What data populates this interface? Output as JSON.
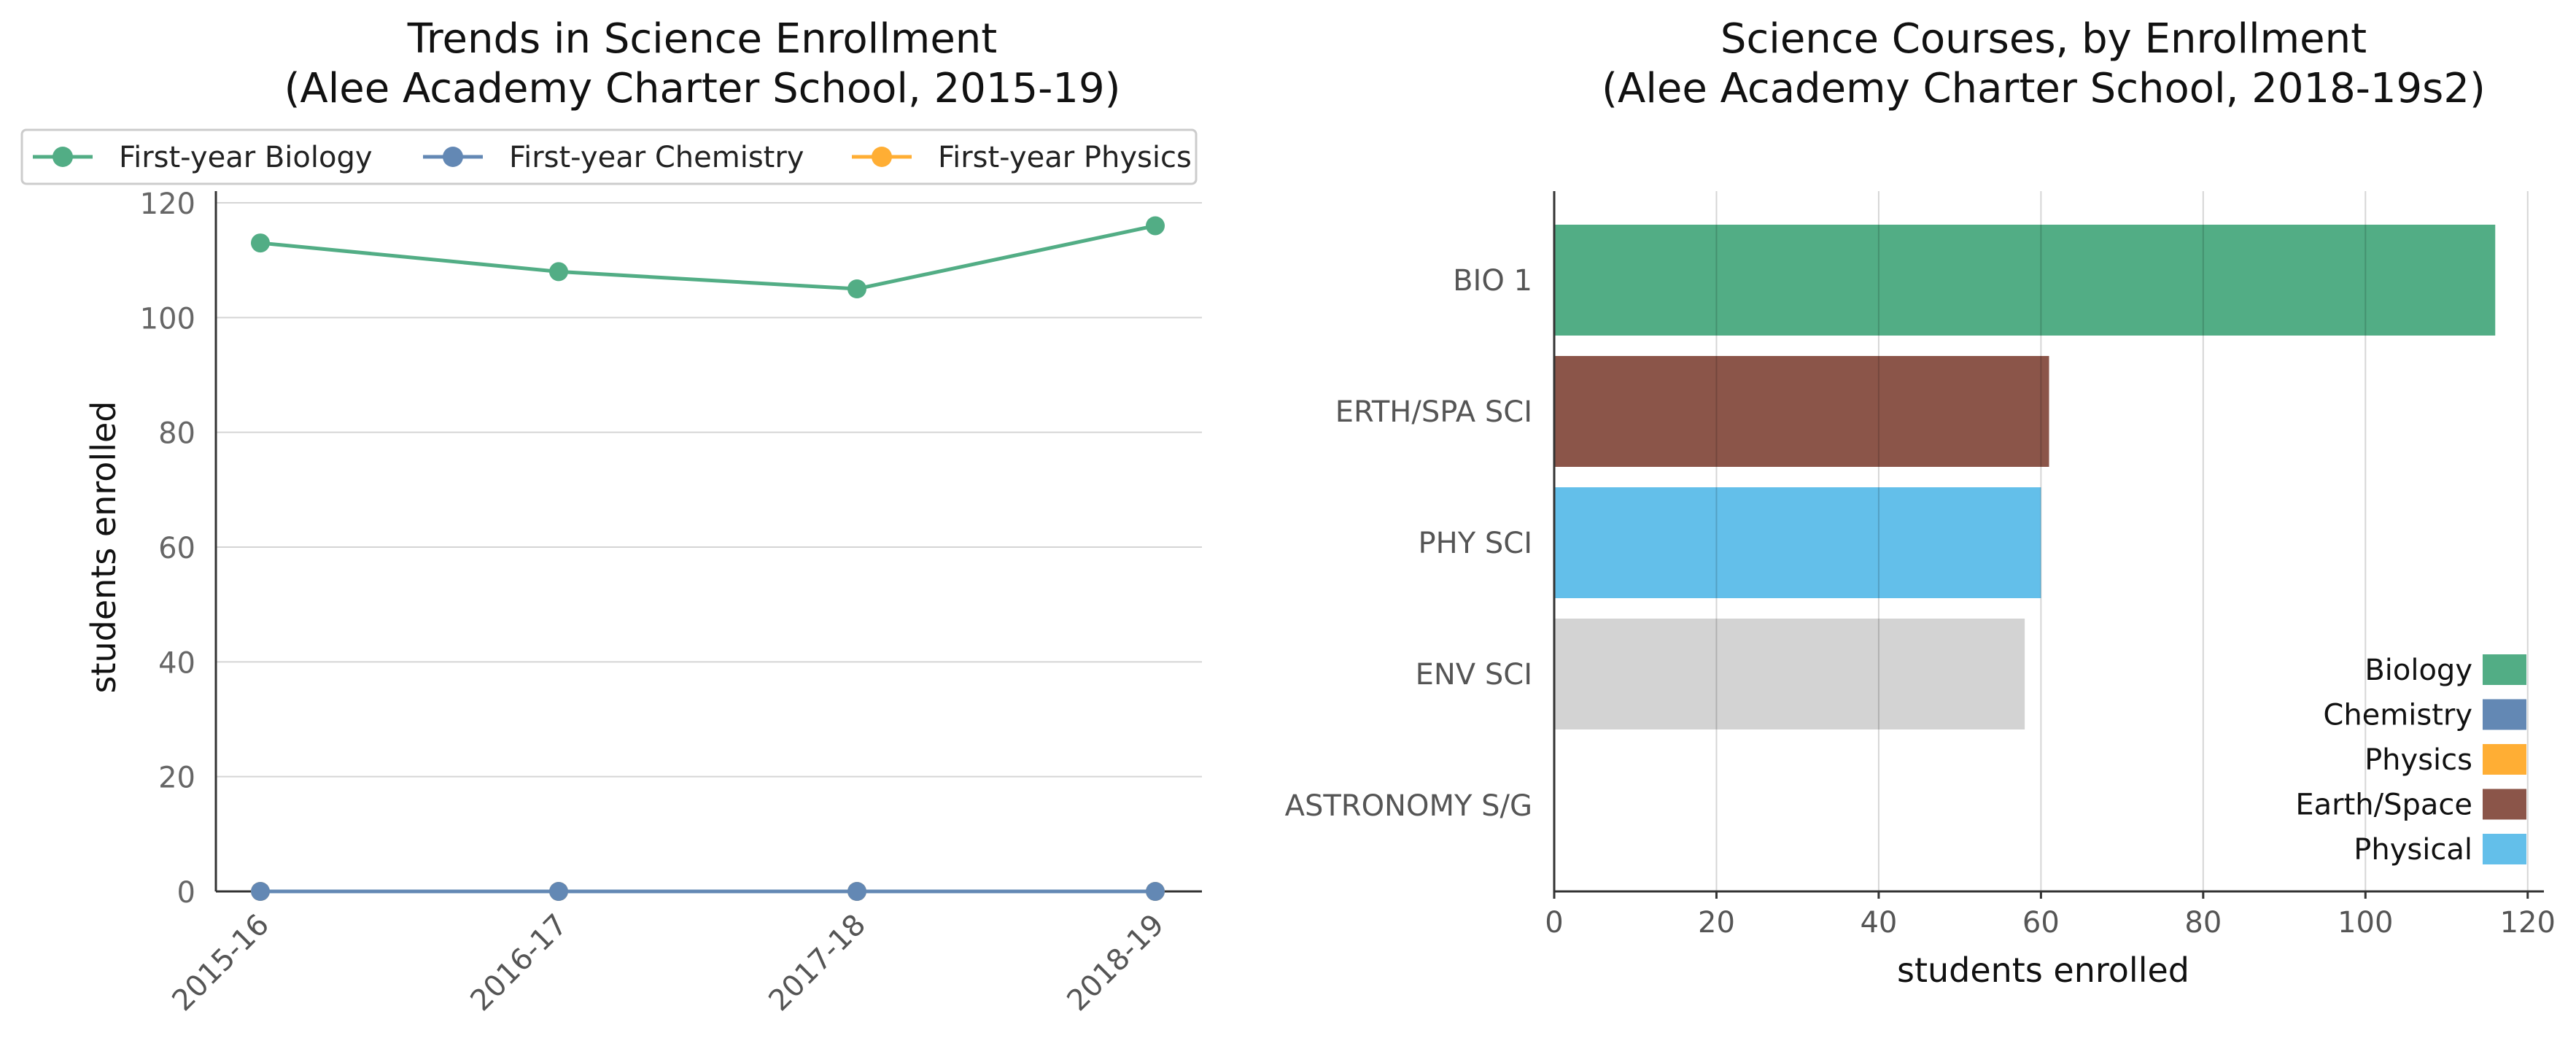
{
  "chart_data": [
    {
      "type": "line",
      "title_lines": [
        "Trends in Science Enrollment",
        "(Alee Academy Charter School, 2015-19)"
      ],
      "xlabel": "",
      "ylabel": "students enrolled",
      "categories": [
        "2015-16",
        "2016-17",
        "2017-18",
        "2018-19"
      ],
      "ylim": [
        0,
        120
      ],
      "yticks": [
        0,
        20,
        40,
        60,
        80,
        100,
        120
      ],
      "grid": "horizontal",
      "legend_position": "top",
      "series": [
        {
          "name": "First-year Biology",
          "color": "#52AD85",
          "values": [
            113,
            108,
            105,
            116
          ]
        },
        {
          "name": "First-year Chemistry",
          "color": "#6388B4",
          "values": [
            0,
            0,
            0,
            0
          ]
        },
        {
          "name": "First-year Physics",
          "color": "#FFAE34",
          "values": [
            0,
            0,
            0,
            0
          ]
        }
      ]
    },
    {
      "type": "bar",
      "orientation": "horizontal",
      "title_lines": [
        "Science Courses, by Enrollment",
        "(Alee Academy Charter School, 2018-19s2)"
      ],
      "xlabel": "students enrolled",
      "ylabel": "",
      "categories": [
        "BIO 1",
        "ERTH/SPA SCI",
        "PHY SCI",
        "ENV SCI",
        "ASTRONOMY S/G"
      ],
      "values": [
        116,
        61,
        60,
        58,
        0
      ],
      "colors": [
        "#52AD85",
        "#8B5549",
        "#63BFEA",
        "#D3D3D3",
        "#D3D3D3"
      ],
      "xlim": [
        0,
        122
      ],
      "xticks": [
        0,
        20,
        40,
        60,
        80,
        100,
        120
      ],
      "grid": "vertical",
      "legend_position": "bottom-right",
      "legend": [
        {
          "label": "Biology",
          "color": "#52AD85"
        },
        {
          "label": "Chemistry",
          "color": "#6388B4"
        },
        {
          "label": "Physics",
          "color": "#FFAE34"
        },
        {
          "label": "Earth/Space",
          "color": "#8B5549"
        },
        {
          "label": "Physical",
          "color": "#63BFEA"
        }
      ]
    }
  ]
}
